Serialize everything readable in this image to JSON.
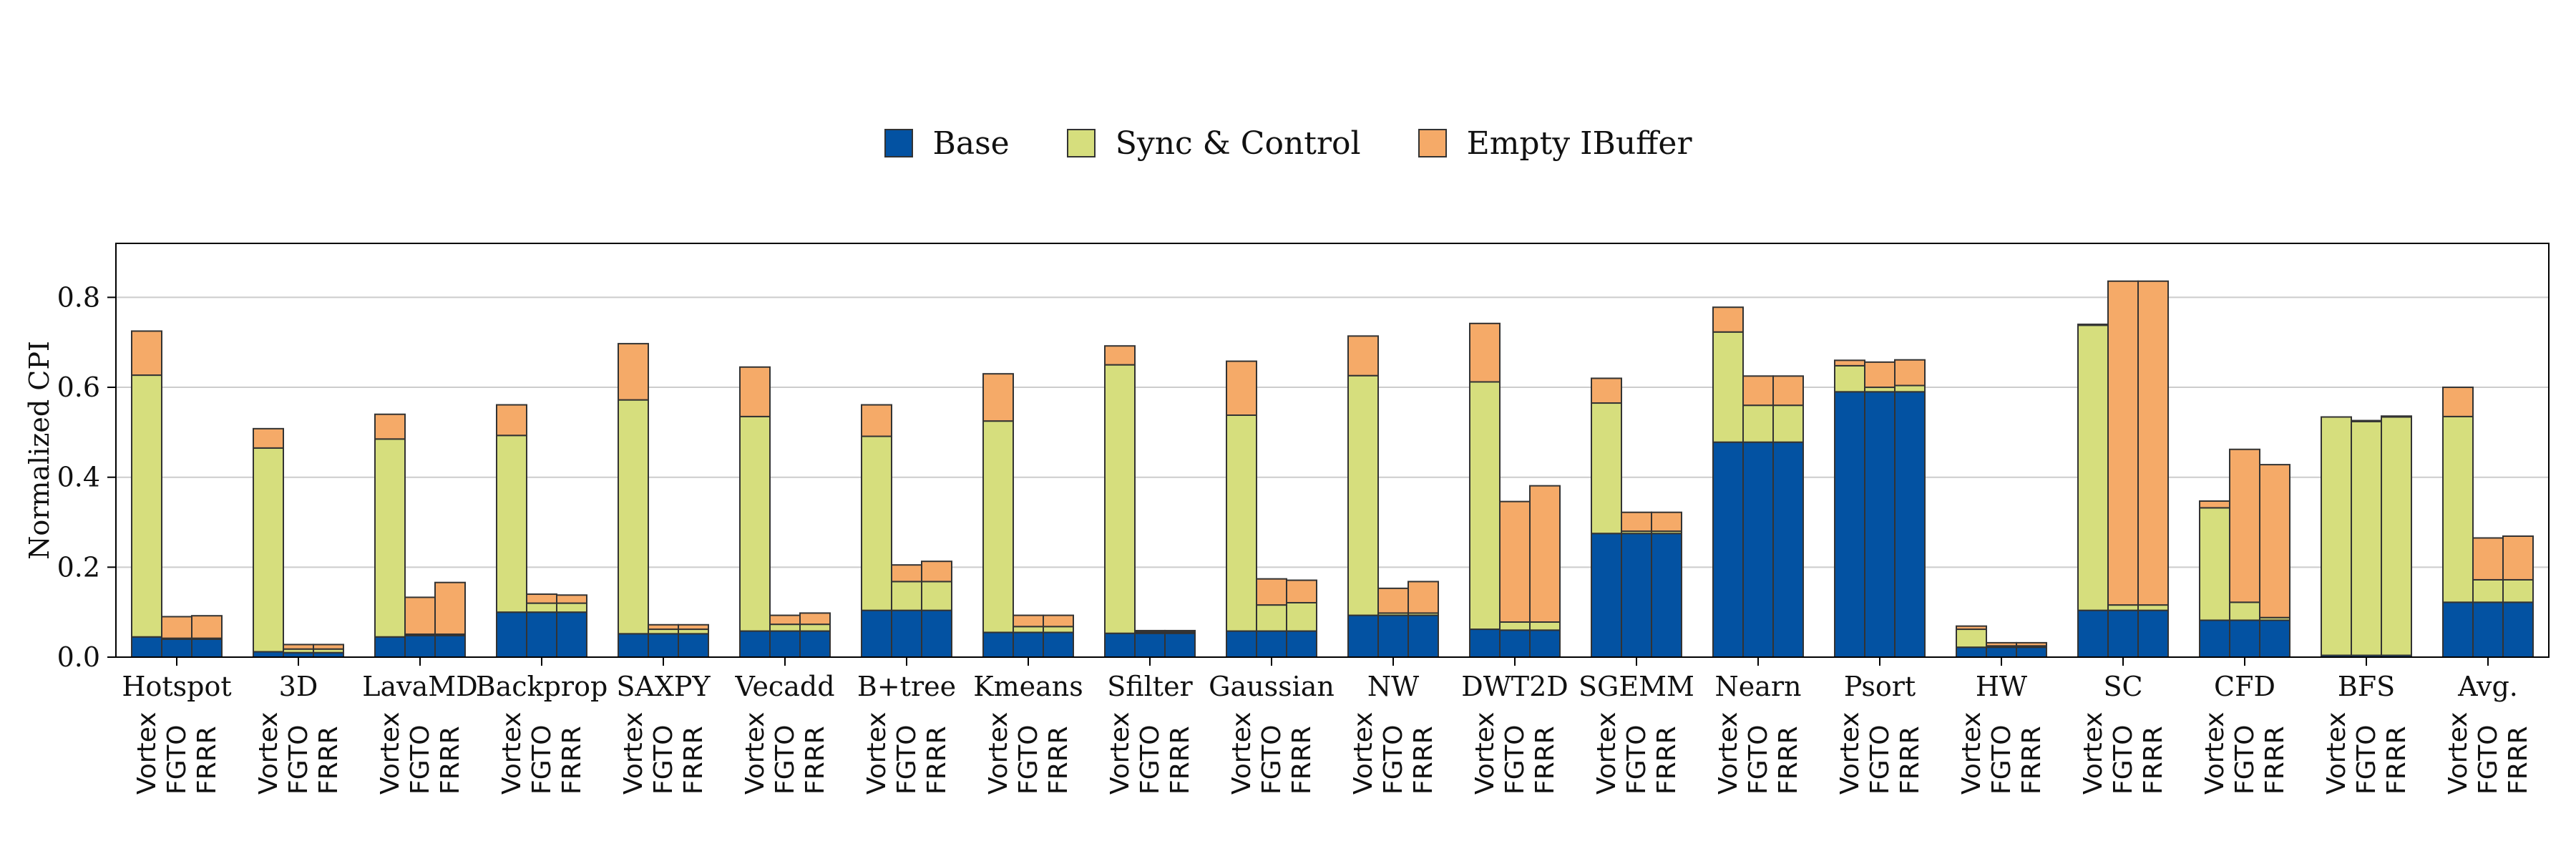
{
  "chart_data": {
    "type": "bar",
    "stacked": true,
    "ylabel": "Normalized CPI",
    "ylim": [
      0,
      0.92
    ],
    "yticks": [
      "0.0",
      "0.2",
      "0.4",
      "0.6",
      "0.8"
    ],
    "grid": true,
    "legend_position": "top-center",
    "configs": [
      "Vortex",
      "FGTO",
      "FRRR"
    ],
    "categories": [
      "Hotspot",
      "3D",
      "LavaMD",
      "Backprop",
      "SAXPY",
      "Vecadd",
      "B+tree",
      "Kmeans",
      "Sfilter",
      "Gaussian",
      "NW",
      "DWT2D",
      "SGEMM",
      "Nearn",
      "Psort",
      "HW",
      "SC",
      "CFD",
      "BFS",
      "Avg."
    ],
    "series": [
      {
        "name": "Base",
        "color": "#0352a2",
        "values": [
          [
            0.045,
            0.04,
            0.04
          ],
          [
            0.012,
            0.01,
            0.01
          ],
          [
            0.045,
            0.048,
            0.048
          ],
          [
            0.1,
            0.1,
            0.1
          ],
          [
            0.052,
            0.052,
            0.052
          ],
          [
            0.058,
            0.058,
            0.058
          ],
          [
            0.104,
            0.104,
            0.104
          ],
          [
            0.055,
            0.055,
            0.055
          ],
          [
            0.053,
            0.053,
            0.053
          ],
          [
            0.058,
            0.058,
            0.058
          ],
          [
            0.093,
            0.093,
            0.093
          ],
          [
            0.062,
            0.06,
            0.06
          ],
          [
            0.275,
            0.275,
            0.275
          ],
          [
            0.478,
            0.478,
            0.478
          ],
          [
            0.59,
            0.59,
            0.59
          ],
          [
            0.022,
            0.022,
            0.022
          ],
          [
            0.104,
            0.104,
            0.104
          ],
          [
            0.082,
            0.082,
            0.082
          ],
          [
            0.004,
            0.004,
            0.004
          ],
          [
            0.122,
            0.122,
            0.122
          ]
        ]
      },
      {
        "name": "Sync & Control",
        "color": "#d6de7d",
        "values": [
          [
            0.582,
            0.002,
            0.002
          ],
          [
            0.453,
            0.008,
            0.008
          ],
          [
            0.44,
            0.003,
            0.003
          ],
          [
            0.393,
            0.02,
            0.02
          ],
          [
            0.52,
            0.01,
            0.01
          ],
          [
            0.477,
            0.015,
            0.015
          ],
          [
            0.387,
            0.064,
            0.064
          ],
          [
            0.47,
            0.013,
            0.013
          ],
          [
            0.597,
            0.003,
            0.003
          ],
          [
            0.48,
            0.058,
            0.063
          ],
          [
            0.533,
            0.005,
            0.005
          ],
          [
            0.55,
            0.018,
            0.018
          ],
          [
            0.29,
            0.005,
            0.005
          ],
          [
            0.245,
            0.082,
            0.082
          ],
          [
            0.058,
            0.01,
            0.014
          ],
          [
            0.04,
            0.003,
            0.003
          ],
          [
            0.634,
            0.012,
            0.012
          ],
          [
            0.25,
            0.04,
            0.006
          ],
          [
            0.53,
            0.52,
            0.53
          ],
          [
            0.413,
            0.05,
            0.05
          ]
        ]
      },
      {
        "name": "Empty IBuffer",
        "color": "#f5aa68",
        "values": [
          [
            0.098,
            0.048,
            0.05
          ],
          [
            0.043,
            0.01,
            0.01
          ],
          [
            0.055,
            0.082,
            0.115
          ],
          [
            0.068,
            0.02,
            0.018
          ],
          [
            0.125,
            0.01,
            0.01
          ],
          [
            0.11,
            0.02,
            0.025
          ],
          [
            0.07,
            0.037,
            0.045
          ],
          [
            0.105,
            0.025,
            0.025
          ],
          [
            0.042,
            0.003,
            0.003
          ],
          [
            0.12,
            0.058,
            0.05
          ],
          [
            0.088,
            0.055,
            0.07
          ],
          [
            0.13,
            0.268,
            0.303
          ],
          [
            0.055,
            0.042,
            0.042
          ],
          [
            0.055,
            0.065,
            0.065
          ],
          [
            0.012,
            0.056,
            0.057
          ],
          [
            0.007,
            0.007,
            0.007
          ],
          [
            0.002,
            0.72,
            0.72
          ],
          [
            0.015,
            0.34,
            0.34
          ],
          [
            0.0,
            0.002,
            0.002
          ],
          [
            0.065,
            0.093,
            0.097
          ]
        ]
      }
    ]
  }
}
